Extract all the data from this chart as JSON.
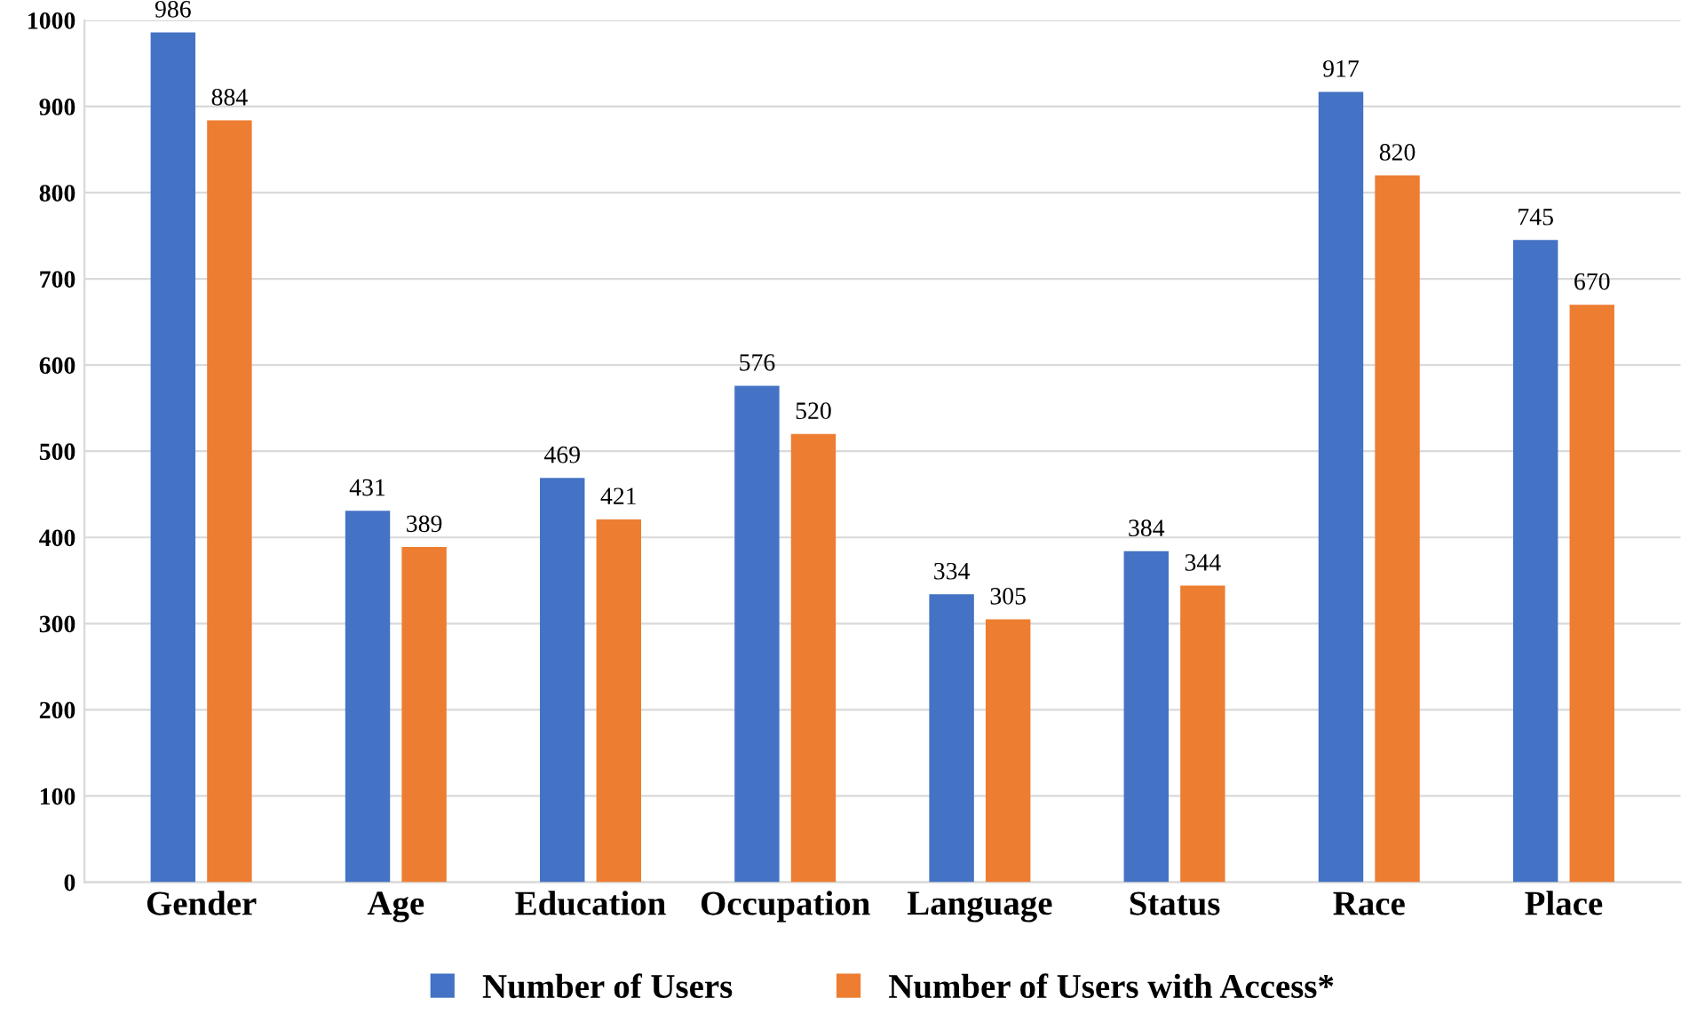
{
  "chart_data": {
    "type": "bar",
    "categories": [
      "Gender",
      "Age",
      "Education",
      "Occupation",
      "Language",
      "Status",
      "Race",
      "Place"
    ],
    "series": [
      {
        "name": "Number of Users",
        "color": "#4472c4",
        "values": [
          986,
          431,
          469,
          576,
          334,
          384,
          917,
          745
        ]
      },
      {
        "name": "Number of Users with Access*",
        "color": "#ed7d31",
        "values": [
          884,
          389,
          421,
          520,
          305,
          344,
          820,
          670
        ]
      }
    ],
    "ylim": [
      0,
      1000
    ],
    "yticks": [
      0,
      100,
      200,
      300,
      400,
      500,
      600,
      700,
      800,
      900,
      1000
    ],
    "grid": "y",
    "legend": "bottom",
    "data_labels": true
  }
}
